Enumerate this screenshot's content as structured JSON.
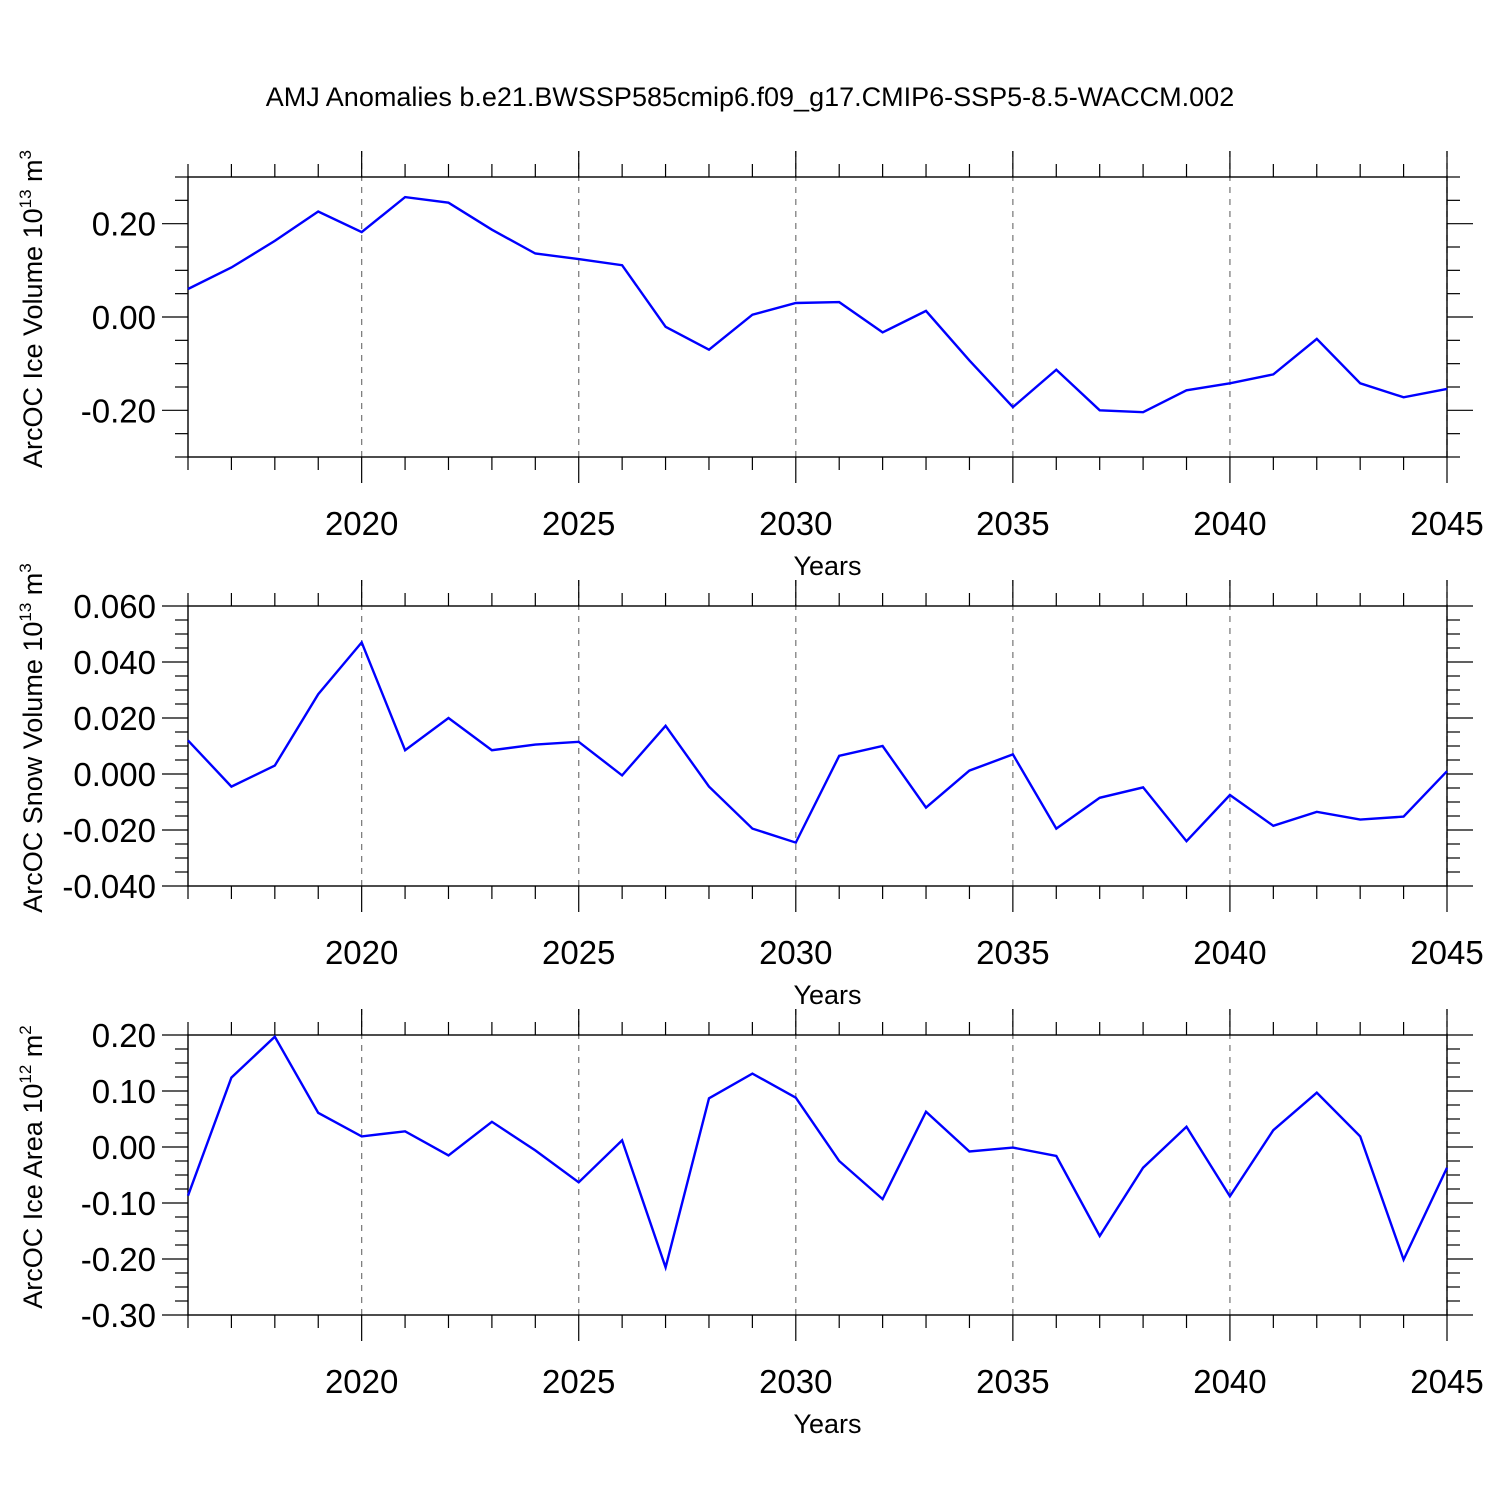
{
  "title": "AMJ Anomalies b.e21.BWSSP585cmip6.f09_g17.CMIP6-SSP5-8.5-WACCM.002",
  "colors": {
    "line": "#0000ff",
    "frame": "#000000",
    "grid": "#7f7f7f",
    "background": "#ffffff"
  },
  "chart_data": [
    {
      "type": "line",
      "xlabel": "Years",
      "ylabel_main": "ArcOC Ice Volume 10",
      "ylabel_exp": "13",
      "ylabel_unit": " m",
      "ylabel_unit_exp": "3",
      "xlim": [
        2016,
        2045
      ],
      "ylim": [
        -0.3,
        0.3
      ],
      "x_ticks": [
        2020,
        2025,
        2030,
        2035,
        2040,
        2045
      ],
      "x_tick_labels": [
        "2020",
        "2025",
        "2030",
        "2035",
        "2040",
        "2045"
      ],
      "y_ticks": [
        -0.2,
        0.0,
        0.2
      ],
      "y_tick_labels": [
        "-0.20",
        "0.00",
        "0.20"
      ],
      "grid_x": true,
      "x": [
        2016,
        2017,
        2018,
        2019,
        2020,
        2021,
        2022,
        2023,
        2024,
        2025,
        2026,
        2027,
        2028,
        2029,
        2030,
        2031,
        2032,
        2033,
        2034,
        2035,
        2036,
        2037,
        2038,
        2039,
        2040,
        2041,
        2042,
        2043,
        2044,
        2045
      ],
      "values": [
        0.06,
        0.106,
        0.163,
        0.226,
        0.182,
        0.257,
        0.245,
        0.187,
        0.136,
        0.124,
        0.111,
        -0.021,
        -0.07,
        0.005,
        0.03,
        0.032,
        -0.033,
        0.013,
        -0.093,
        -0.193,
        -0.113,
        -0.2,
        -0.204,
        -0.157,
        -0.142,
        -0.123,
        -0.047,
        -0.142,
        -0.172,
        -0.154
      ]
    },
    {
      "type": "line",
      "xlabel": "Years",
      "ylabel_main": "ArcOC Snow Volume 10",
      "ylabel_exp": "13",
      "ylabel_unit": " m",
      "ylabel_unit_exp": "3",
      "xlim": [
        2016,
        2045
      ],
      "ylim": [
        -0.04,
        0.06
      ],
      "x_ticks": [
        2020,
        2025,
        2030,
        2035,
        2040,
        2045
      ],
      "x_tick_labels": [
        "2020",
        "2025",
        "2030",
        "2035",
        "2040",
        "2045"
      ],
      "y_ticks": [
        -0.04,
        -0.02,
        0.0,
        0.02,
        0.04,
        0.06
      ],
      "y_tick_labels": [
        "-0.040",
        "-0.020",
        "0.000",
        "0.020",
        "0.040",
        "0.060"
      ],
      "grid_x": true,
      "x": [
        2016,
        2017,
        2018,
        2019,
        2020,
        2021,
        2022,
        2023,
        2024,
        2025,
        2026,
        2027,
        2028,
        2029,
        2030,
        2031,
        2032,
        2033,
        2034,
        2035,
        2036,
        2037,
        2038,
        2039,
        2040,
        2041,
        2042,
        2043,
        2044,
        2045
      ],
      "values": [
        0.012,
        -0.0045,
        0.003,
        0.0285,
        0.047,
        0.0085,
        0.02,
        0.0085,
        0.0105,
        0.0115,
        -0.0005,
        0.0172,
        -0.0045,
        -0.0195,
        -0.0245,
        0.0065,
        0.01,
        -0.012,
        0.0012,
        0.007,
        -0.0195,
        -0.0085,
        -0.0048,
        -0.024,
        -0.0075,
        -0.0185,
        -0.0135,
        -0.0163,
        -0.0152,
        0.001
      ]
    },
    {
      "type": "line",
      "xlabel": "Years",
      "ylabel_main": "ArcOC Ice Area 10",
      "ylabel_exp": "12",
      "ylabel_unit": " m",
      "ylabel_unit_exp": "2",
      "xlim": [
        2016,
        2045
      ],
      "ylim": [
        -0.3,
        0.2
      ],
      "x_ticks": [
        2020,
        2025,
        2030,
        2035,
        2040,
        2045
      ],
      "x_tick_labels": [
        "2020",
        "2025",
        "2030",
        "2035",
        "2040",
        "2045"
      ],
      "y_ticks": [
        -0.3,
        -0.2,
        -0.1,
        0.0,
        0.1,
        0.2
      ],
      "y_tick_labels": [
        "-0.30",
        "-0.20",
        "-0.10",
        "0.00",
        "0.10",
        "0.20"
      ],
      "grid_x": true,
      "x": [
        2016,
        2017,
        2018,
        2019,
        2020,
        2021,
        2022,
        2023,
        2024,
        2025,
        2026,
        2027,
        2028,
        2029,
        2030,
        2031,
        2032,
        2033,
        2034,
        2035,
        2036,
        2037,
        2038,
        2039,
        2040,
        2041,
        2042,
        2043,
        2044,
        2045
      ],
      "values": [
        -0.087,
        0.124,
        0.197,
        0.061,
        0.019,
        0.028,
        -0.015,
        0.045,
        -0.006,
        -0.063,
        0.012,
        -0.215,
        0.087,
        0.131,
        0.088,
        -0.025,
        -0.093,
        0.063,
        -0.008,
        -0.001,
        -0.016,
        -0.159,
        -0.037,
        0.036,
        -0.088,
        0.03,
        0.097,
        0.019,
        -0.201,
        -0.037
      ]
    }
  ]
}
